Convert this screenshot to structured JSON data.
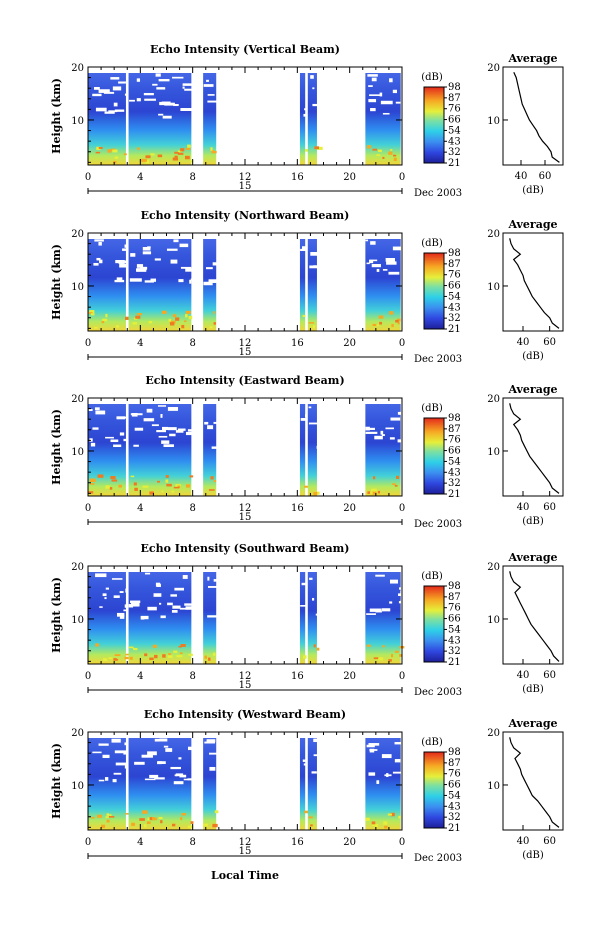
{
  "figure": {
    "xlabel": "Local Time",
    "date_label": "Dec 2003",
    "day_label": "15",
    "colorbar_label": "(dB)",
    "profile_title": "Average",
    "profile_xlabel": "(dB)"
  },
  "chart_data": [
    {
      "type": "heatmap",
      "title": "Echo Intensity (Vertical Beam)",
      "ylabel": "Height (km)",
      "xlim": [
        0,
        24
      ],
      "ylim": [
        1.5,
        20
      ],
      "x_ticks": [
        "0",
        "4",
        "8",
        "12",
        "16",
        "20",
        "0"
      ],
      "y_ticks": [
        "10",
        "20"
      ],
      "colorbar": {
        "label": "(dB)",
        "ticks": [
          "21",
          "32",
          "43",
          "54",
          "66",
          "76",
          "87",
          "98"
        ]
      },
      "data_segments_hours": [
        [
          0,
          2.9
        ],
        [
          3.1,
          7.9
        ],
        [
          8.8,
          9.8
        ],
        [
          16.2,
          16.6
        ],
        [
          16.8,
          17.5
        ],
        [
          21.2,
          23.9
        ]
      ],
      "average_profile": {
        "title": "Average",
        "xlabel": "(dB)",
        "x_ticks": [
          "40",
          "60"
        ],
        "y_ticks": [
          "10",
          "20"
        ],
        "xlim": [
          25,
          75
        ],
        "ylim": [
          1.5,
          20
        ],
        "height_km": [
          2,
          3,
          4,
          5,
          6,
          7,
          8,
          9,
          10,
          11,
          12,
          13,
          14,
          15,
          16,
          17,
          18,
          19
        ],
        "db": [
          72,
          66,
          65,
          62,
          58,
          55,
          53,
          50,
          47,
          45,
          43,
          41,
          40,
          39,
          38,
          37,
          36,
          34
        ]
      }
    },
    {
      "type": "heatmap",
      "title": "Echo Intensity (Northward Beam)",
      "ylabel": "Height (km)",
      "xlim": [
        0,
        24
      ],
      "ylim": [
        1.5,
        20
      ],
      "x_ticks": [
        "0",
        "4",
        "8",
        "12",
        "16",
        "20",
        "0"
      ],
      "y_ticks": [
        "10",
        "20"
      ],
      "colorbar": {
        "label": "(dB)",
        "ticks": [
          "21",
          "32",
          "43",
          "54",
          "66",
          "76",
          "87",
          "98"
        ]
      },
      "data_segments_hours": [
        [
          0,
          2.9
        ],
        [
          3.1,
          7.9
        ],
        [
          8.8,
          9.8
        ],
        [
          16.2,
          16.6
        ],
        [
          16.8,
          17.5
        ],
        [
          21.2,
          23.9
        ]
      ],
      "average_profile": {
        "title": "Average",
        "xlabel": "(dB)",
        "x_ticks": [
          "40",
          "60"
        ],
        "y_ticks": [
          "10",
          "20"
        ],
        "xlim": [
          25,
          70
        ],
        "ylim": [
          1.5,
          20
        ],
        "height_km": [
          2,
          3,
          4,
          5,
          6,
          7,
          8,
          9,
          10,
          11,
          12,
          13,
          14,
          15,
          16,
          17,
          18,
          19
        ],
        "db": [
          67,
          62,
          60,
          56,
          53,
          50,
          47,
          45,
          43,
          41,
          40,
          38,
          36,
          33,
          38,
          33,
          31,
          30
        ]
      }
    },
    {
      "type": "heatmap",
      "title": "Echo Intensity (Eastward Beam)",
      "ylabel": "Height (km)",
      "xlim": [
        0,
        24
      ],
      "ylim": [
        1.5,
        20
      ],
      "x_ticks": [
        "0",
        "4",
        "8",
        "12",
        "16",
        "20",
        "0"
      ],
      "y_ticks": [
        "10",
        "20"
      ],
      "colorbar": {
        "label": "(dB)",
        "ticks": [
          "21",
          "32",
          "43",
          "54",
          "66",
          "76",
          "87",
          "98"
        ]
      },
      "data_segments_hours": [
        [
          0,
          2.9
        ],
        [
          3.1,
          7.9
        ],
        [
          8.8,
          9.8
        ],
        [
          16.2,
          16.6
        ],
        [
          16.8,
          17.5
        ],
        [
          21.2,
          23.9
        ]
      ],
      "average_profile": {
        "title": "Average",
        "xlabel": "(dB)",
        "x_ticks": [
          "40",
          "60"
        ],
        "y_ticks": [
          "10",
          "20"
        ],
        "xlim": [
          25,
          70
        ],
        "ylim": [
          1.5,
          20
        ],
        "height_km": [
          2,
          3,
          4,
          5,
          6,
          7,
          8,
          9,
          10,
          11,
          12,
          13,
          14,
          15,
          16,
          17,
          18,
          19
        ],
        "db": [
          67,
          62,
          60,
          57,
          54,
          51,
          48,
          45,
          43,
          41,
          39,
          38,
          36,
          33,
          38,
          33,
          31,
          30
        ]
      }
    },
    {
      "type": "heatmap",
      "title": "Echo Intensity (Southward Beam)",
      "ylabel": "Height (km)",
      "xlim": [
        0,
        24
      ],
      "ylim": [
        1.5,
        20
      ],
      "x_ticks": [
        "0",
        "4",
        "8",
        "12",
        "16",
        "20",
        "0"
      ],
      "y_ticks": [
        "10",
        "20"
      ],
      "colorbar": {
        "label": "(dB)",
        "ticks": [
          "21",
          "32",
          "43",
          "54",
          "66",
          "76",
          "87",
          "98"
        ]
      },
      "data_segments_hours": [
        [
          0,
          2.9
        ],
        [
          3.1,
          7.9
        ],
        [
          8.8,
          9.8
        ],
        [
          16.2,
          16.6
        ],
        [
          16.8,
          17.5
        ],
        [
          21.2,
          23.9
        ]
      ],
      "average_profile": {
        "title": "Average",
        "xlabel": "(dB)",
        "x_ticks": [
          "40",
          "60"
        ],
        "y_ticks": [
          "10",
          "20"
        ],
        "xlim": [
          25,
          70
        ],
        "ylim": [
          1.5,
          20
        ],
        "height_km": [
          2,
          3,
          4,
          5,
          6,
          7,
          8,
          9,
          10,
          11,
          12,
          13,
          14,
          15,
          16,
          17,
          18,
          19
        ],
        "db": [
          67,
          63,
          61,
          58,
          55,
          52,
          49,
          46,
          44,
          42,
          40,
          38,
          36,
          34,
          38,
          33,
          31,
          30
        ]
      }
    },
    {
      "type": "heatmap",
      "title": "Echo Intensity (Westward Beam)",
      "ylabel": "Height (km)",
      "xlim": [
        0,
        24
      ],
      "ylim": [
        1.5,
        20
      ],
      "x_ticks": [
        "0",
        "4",
        "8",
        "12",
        "16",
        "20",
        "0"
      ],
      "y_ticks": [
        "10",
        "20"
      ],
      "colorbar": {
        "label": "(dB)",
        "ticks": [
          "21",
          "32",
          "43",
          "54",
          "66",
          "76",
          "87",
          "98"
        ]
      },
      "data_segments_hours": [
        [
          0,
          2.9
        ],
        [
          3.1,
          7.9
        ],
        [
          8.8,
          9.8
        ],
        [
          16.2,
          16.6
        ],
        [
          16.8,
          17.5
        ],
        [
          21.2,
          23.9
        ]
      ],
      "average_profile": {
        "title": "Average",
        "xlabel": "(dB)",
        "x_ticks": [
          "40",
          "60"
        ],
        "y_ticks": [
          "10",
          "20"
        ],
        "xlim": [
          25,
          70
        ],
        "ylim": [
          1.5,
          20
        ],
        "height_km": [
          2,
          3,
          4,
          5,
          6,
          7,
          8,
          9,
          10,
          11,
          12,
          13,
          14,
          15,
          16,
          17,
          18,
          19
        ],
        "db": [
          67,
          62,
          60,
          57,
          54,
          51,
          47,
          45,
          43,
          41,
          39,
          38,
          36,
          34,
          38,
          33,
          31,
          30
        ]
      }
    }
  ]
}
